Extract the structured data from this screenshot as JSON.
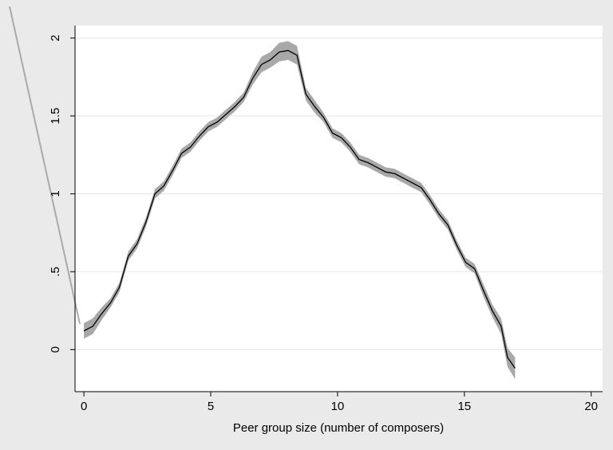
{
  "chart_data": {
    "type": "line",
    "x_label": "Peer group size (number of composers)",
    "x": [
      0,
      0.35,
      0.7,
      1.05,
      1.4,
      1.75,
      2.1,
      2.45,
      2.8,
      3.15,
      3.5,
      3.85,
      4.2,
      4.55,
      4.9,
      5.25,
      5.6,
      5.95,
      6.3,
      6.65,
      7.0,
      7.35,
      7.7,
      8.05,
      8.4,
      8.75,
      9.1,
      9.45,
      9.8,
      10.15,
      10.5,
      10.85,
      11.2,
      11.55,
      11.9,
      12.25,
      12.6,
      12.95,
      13.3,
      13.65,
      14.0,
      14.35,
      14.7,
      15.05,
      15.4,
      15.75,
      16.1,
      16.45,
      16.7,
      17.0
    ],
    "values": [
      0.12,
      0.15,
      0.23,
      0.3,
      0.4,
      0.6,
      0.68,
      0.82,
      1.0,
      1.05,
      1.15,
      1.26,
      1.3,
      1.37,
      1.43,
      1.46,
      1.51,
      1.56,
      1.62,
      1.74,
      1.83,
      1.86,
      1.91,
      1.92,
      1.89,
      1.64,
      1.56,
      1.49,
      1.39,
      1.36,
      1.3,
      1.22,
      1.2,
      1.17,
      1.14,
      1.13,
      1.1,
      1.07,
      1.04,
      0.96,
      0.87,
      0.8,
      0.67,
      0.56,
      0.52,
      0.38,
      0.25,
      0.15,
      -0.05,
      -0.12
    ],
    "lower": [
      0.07,
      0.1,
      0.19,
      0.27,
      0.37,
      0.57,
      0.65,
      0.79,
      0.97,
      1.02,
      1.12,
      1.23,
      1.27,
      1.34,
      1.4,
      1.43,
      1.48,
      1.53,
      1.59,
      1.7,
      1.78,
      1.81,
      1.85,
      1.86,
      1.83,
      1.6,
      1.52,
      1.46,
      1.36,
      1.33,
      1.27,
      1.19,
      1.17,
      1.14,
      1.11,
      1.1,
      1.07,
      1.04,
      1.01,
      0.93,
      0.84,
      0.77,
      0.64,
      0.53,
      0.49,
      0.34,
      0.21,
      0.1,
      -0.11,
      -0.19
    ],
    "upper": [
      0.17,
      0.2,
      0.27,
      0.33,
      0.43,
      0.63,
      0.71,
      0.85,
      1.03,
      1.08,
      1.18,
      1.29,
      1.33,
      1.4,
      1.46,
      1.49,
      1.54,
      1.59,
      1.65,
      1.78,
      1.88,
      1.91,
      1.97,
      1.98,
      1.95,
      1.68,
      1.6,
      1.52,
      1.42,
      1.39,
      1.33,
      1.25,
      1.23,
      1.2,
      1.17,
      1.16,
      1.13,
      1.1,
      1.07,
      0.99,
      0.9,
      0.83,
      0.7,
      0.59,
      0.55,
      0.42,
      0.29,
      0.2,
      0.01,
      -0.05
    ],
    "color": "#000000",
    "band_color": "#a8a8a8",
    "xlim": [
      -0.35,
      20.45
    ],
    "xticks": [
      0,
      5,
      10,
      15,
      20
    ],
    "ylim": [
      -0.27,
      2.08
    ],
    "yticks": [
      0,
      {
        "value": 0.5,
        "label": ".5"
      },
      1,
      1.5,
      2
    ],
    "grid": true
  }
}
